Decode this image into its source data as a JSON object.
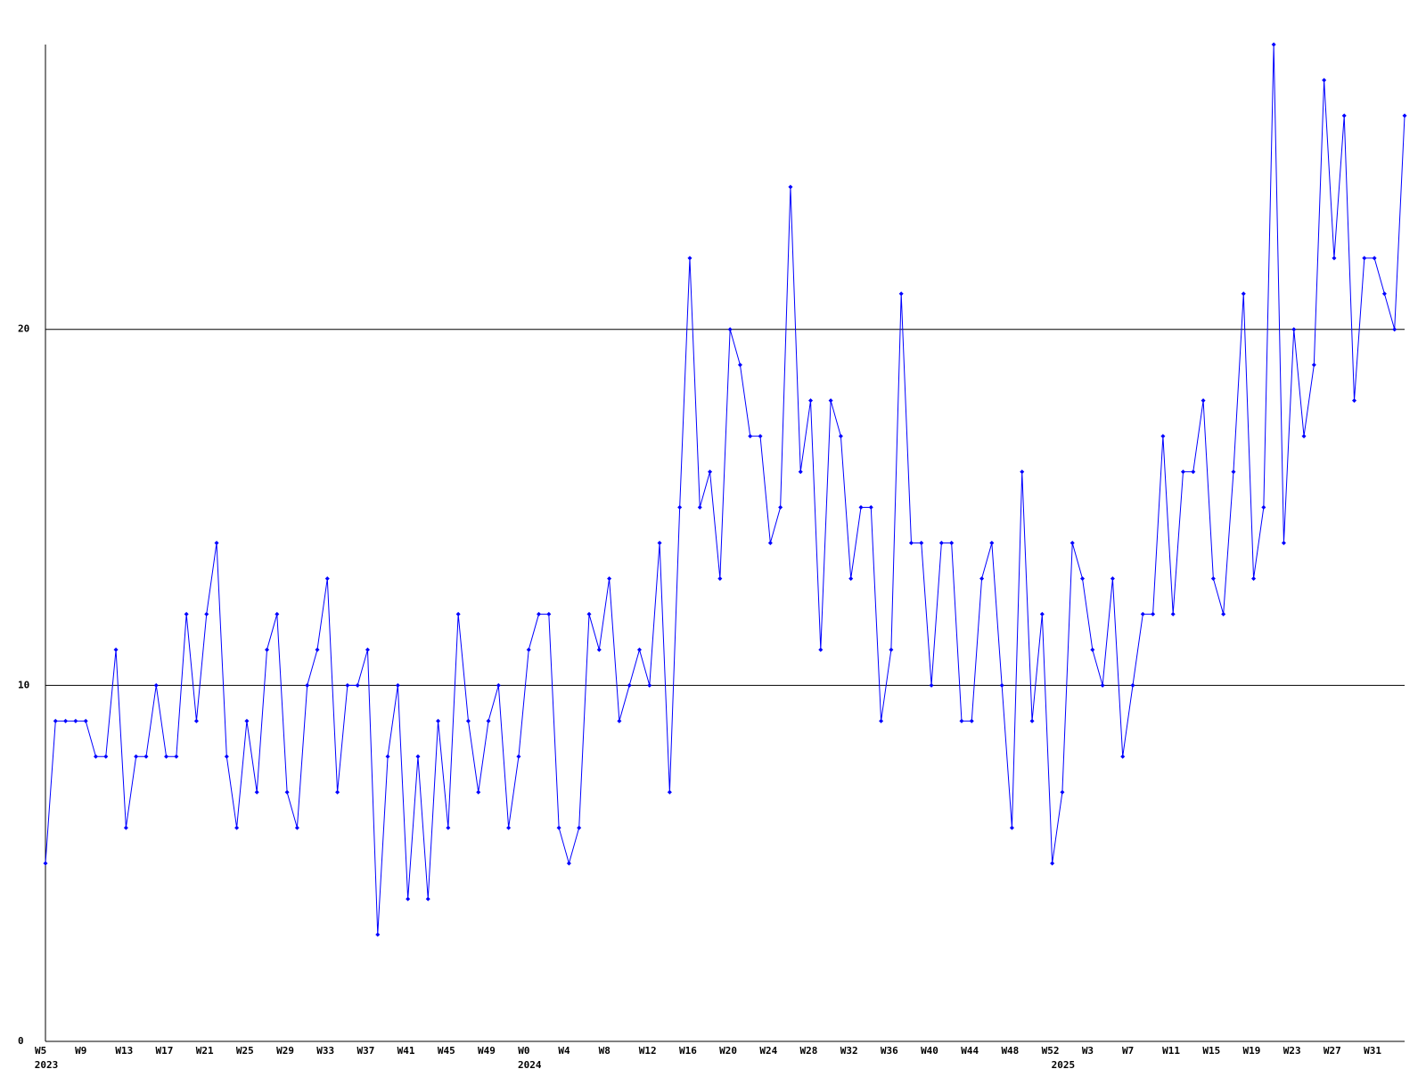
{
  "chart_data": {
    "type": "line",
    "color": "#0000ff",
    "categories": [
      "W5",
      null,
      null,
      null,
      "W9",
      null,
      null,
      null,
      "W13",
      null,
      null,
      null,
      "W17",
      null,
      null,
      null,
      "W21",
      null,
      null,
      null,
      "W25",
      null,
      null,
      null,
      "W29",
      null,
      null,
      null,
      "W33",
      null,
      null,
      null,
      "W37",
      null,
      null,
      null,
      "W41",
      null,
      null,
      null,
      "W45",
      null,
      null,
      null,
      "W49",
      null,
      null,
      null,
      "W0",
      null,
      null,
      null,
      "W4",
      null,
      null,
      null,
      "W8",
      null,
      null,
      null,
      "W12",
      null,
      null,
      null,
      "W16",
      null,
      null,
      null,
      "W20",
      null,
      null,
      null,
      "W24",
      null,
      null,
      null,
      "W28",
      null,
      null,
      null,
      "W32",
      null,
      null,
      null,
      "W36",
      null,
      null,
      null,
      "W40",
      null,
      null,
      null,
      "W44",
      null,
      null,
      null,
      "W48",
      null,
      null,
      null,
      "W52",
      null,
      null,
      null,
      "W3",
      null,
      null,
      null,
      "W7",
      null,
      null,
      null,
      "W11",
      null,
      null,
      null,
      "W15",
      null,
      null,
      null,
      "W19",
      null,
      null,
      null,
      "W23",
      null,
      null,
      null,
      "W27",
      null,
      null,
      null,
      "W31",
      null,
      null,
      null
    ],
    "year_labels": [
      "2023",
      null,
      null,
      null,
      null,
      null,
      null,
      null,
      null,
      null,
      null,
      null,
      null,
      null,
      null,
      null,
      null,
      null,
      null,
      null,
      null,
      null,
      null,
      null,
      null,
      null,
      null,
      null,
      null,
      null,
      null,
      null,
      null,
      null,
      null,
      null,
      null,
      null,
      null,
      null,
      null,
      null,
      null,
      null,
      null,
      null,
      null,
      null,
      "2024",
      null,
      null,
      null,
      null,
      null,
      null,
      null,
      null,
      null,
      null,
      null,
      null,
      null,
      null,
      null,
      null,
      null,
      null,
      null,
      null,
      null,
      null,
      null,
      null,
      null,
      null,
      null,
      null,
      null,
      null,
      null,
      null,
      null,
      null,
      null,
      null,
      null,
      null,
      null,
      null,
      null,
      null,
      null,
      null,
      null,
      null,
      null,
      null,
      null,
      null,
      null,
      null,
      "2025",
      null,
      null,
      null,
      null,
      null,
      null,
      null,
      null,
      null,
      null,
      null,
      null,
      null,
      null,
      null,
      null,
      null,
      null,
      null,
      null,
      null,
      null,
      null,
      null,
      null,
      null,
      null,
      null,
      null,
      null,
      null,
      null,
      null,
      null
    ],
    "values": [
      5,
      9,
      9,
      9,
      9,
      8,
      8,
      11,
      6,
      8,
      8,
      10,
      8,
      8,
      12,
      9,
      12,
      14,
      8,
      6,
      9,
      7,
      11,
      12,
      7,
      6,
      10,
      11,
      13,
      7,
      10,
      10,
      11,
      3,
      8,
      10,
      4,
      8,
      4,
      9,
      6,
      12,
      9,
      7,
      9,
      10,
      6,
      8,
      11,
      12,
      12,
      6,
      5,
      6,
      12,
      11,
      13,
      9,
      10,
      11,
      10,
      14,
      7,
      15,
      22,
      15,
      16,
      13,
      20,
      19,
      17,
      17,
      14,
      15,
      24,
      16,
      18,
      11,
      18,
      17,
      13,
      15,
      15,
      9,
      11,
      21,
      14,
      14,
      10,
      14,
      14,
      9,
      9,
      13,
      14,
      10,
      6,
      16,
      9,
      12,
      5,
      7,
      14,
      13,
      11,
      10,
      13,
      8,
      10,
      12,
      12,
      17,
      12,
      16,
      16,
      18,
      13,
      12,
      16,
      21,
      13,
      15,
      28,
      14,
      20,
      17,
      19,
      27,
      22,
      26,
      18,
      22,
      22,
      21,
      20,
      26
    ],
    "ylim": [
      0,
      28
    ],
    "yticks": [
      0,
      10,
      20
    ],
    "grid": true
  }
}
